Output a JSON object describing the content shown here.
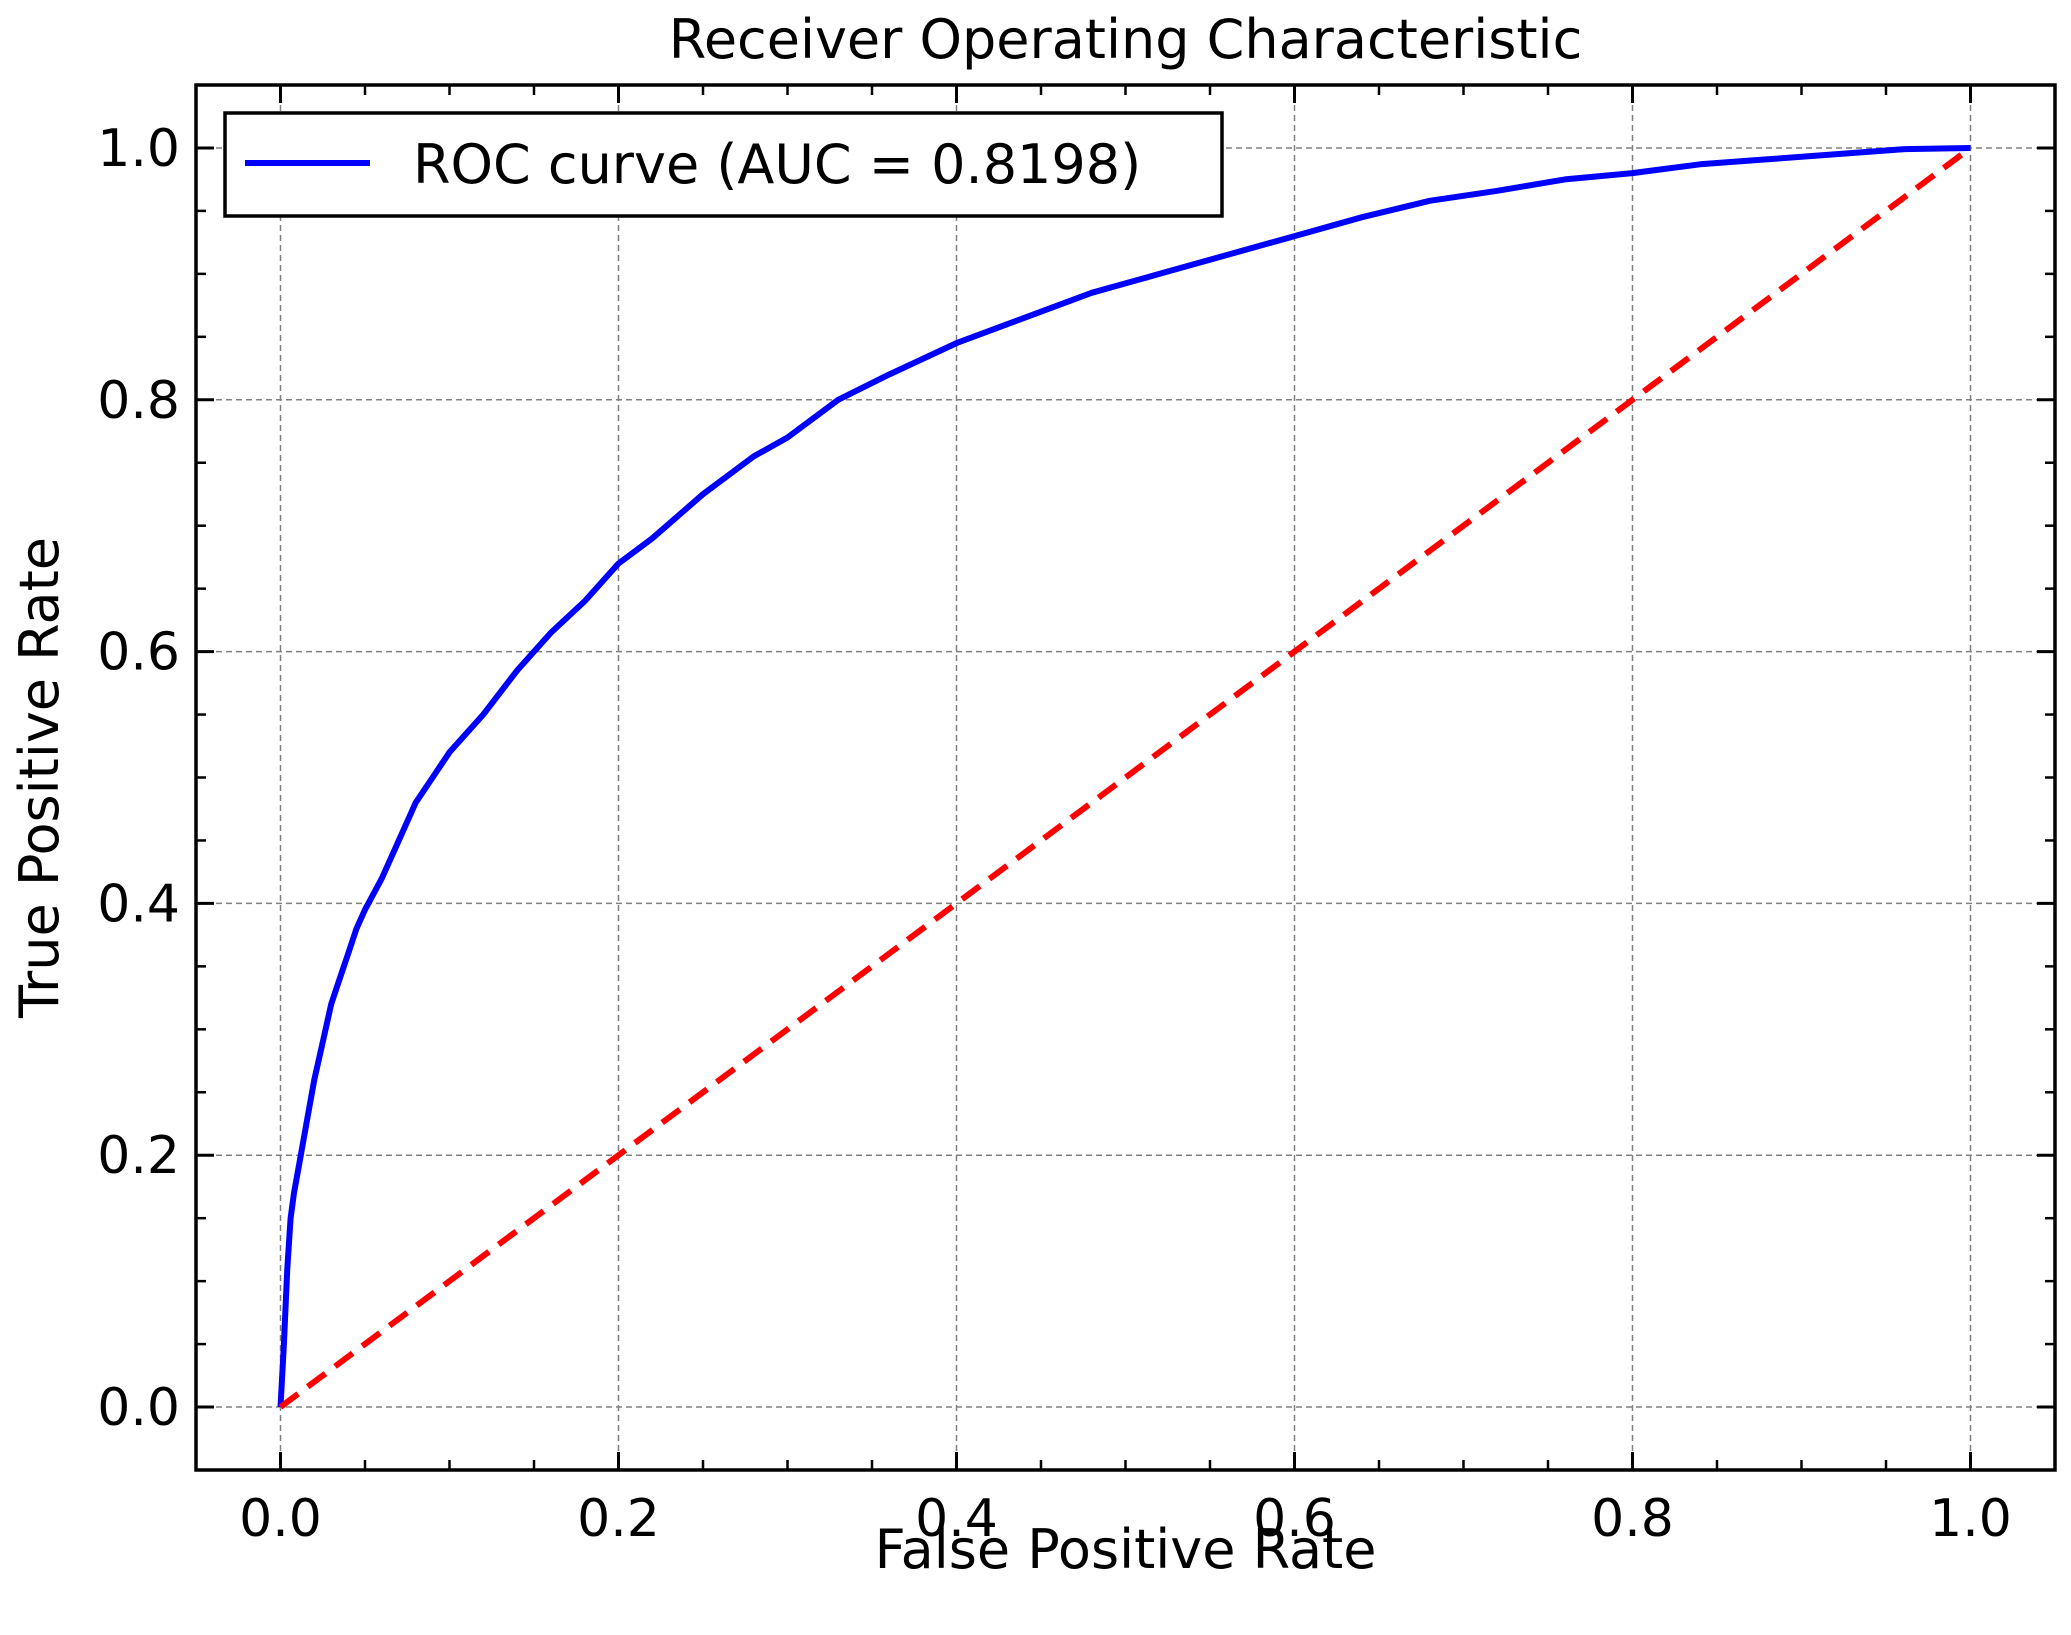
{
  "chart_data": {
    "type": "line",
    "title": "Receiver Operating Characteristic",
    "xlabel": "False Positive Rate",
    "ylabel": "True Positive Rate",
    "xlim": [
      -0.05,
      1.05
    ],
    "ylim": [
      -0.05,
      1.05
    ],
    "x_ticks": [
      "0.0",
      "0.2",
      "0.4",
      "0.6",
      "0.8",
      "1.0"
    ],
    "y_ticks": [
      "0.0",
      "0.2",
      "0.4",
      "0.6",
      "0.8",
      "1.0"
    ],
    "grid": true,
    "legend_position": "top-left",
    "series": [
      {
        "name": "ROC curve (AUC = 0.8198)",
        "color": "#0000ff",
        "style": "solid",
        "x": [
          0.0,
          0.002,
          0.004,
          0.006,
          0.008,
          0.012,
          0.016,
          0.02,
          0.025,
          0.03,
          0.035,
          0.04,
          0.045,
          0.05,
          0.06,
          0.07,
          0.08,
          0.09,
          0.1,
          0.12,
          0.14,
          0.16,
          0.18,
          0.2,
          0.22,
          0.25,
          0.28,
          0.3,
          0.33,
          0.36,
          0.4,
          0.44,
          0.48,
          0.52,
          0.56,
          0.6,
          0.64,
          0.68,
          0.72,
          0.76,
          0.8,
          0.84,
          0.88,
          0.92,
          0.96,
          1.0
        ],
        "y": [
          0.0,
          0.05,
          0.11,
          0.15,
          0.17,
          0.2,
          0.23,
          0.26,
          0.29,
          0.32,
          0.34,
          0.36,
          0.38,
          0.395,
          0.42,
          0.45,
          0.48,
          0.5,
          0.52,
          0.55,
          0.585,
          0.615,
          0.64,
          0.67,
          0.69,
          0.725,
          0.755,
          0.77,
          0.8,
          0.82,
          0.845,
          0.865,
          0.885,
          0.9,
          0.915,
          0.93,
          0.945,
          0.958,
          0.966,
          0.975,
          0.98,
          0.987,
          0.991,
          0.995,
          0.999,
          1.0
        ]
      },
      {
        "name": "",
        "color": "#ff0000",
        "style": "dashed",
        "x": [
          0.0,
          1.0
        ],
        "y": [
          0.0,
          1.0
        ]
      }
    ]
  }
}
